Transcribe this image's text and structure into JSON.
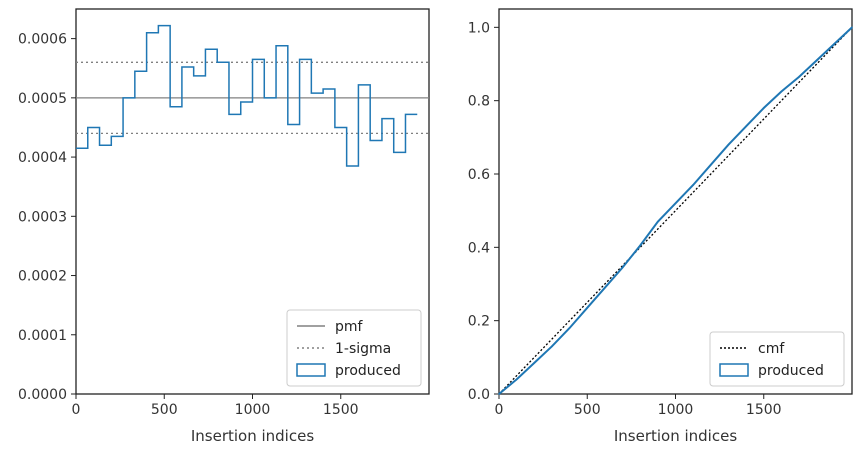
{
  "colors": {
    "produced": "#1f77b4",
    "pmf": "#808080",
    "sigma": "#808080",
    "cmf": "#000000",
    "axes": "#222222"
  },
  "chart_data": [
    {
      "type": "line",
      "xlabel": "Insertion indices",
      "ylabel": "",
      "xlim": [
        0,
        2000
      ],
      "ylim": [
        0,
        0.00065
      ],
      "xticks": [
        0,
        500,
        1000,
        1500
      ],
      "xtick_labels": [
        "0",
        "500",
        "1000",
        "1500"
      ],
      "yticks": [
        0,
        0.0001,
        0.0002,
        0.0003,
        0.0004,
        0.0005,
        0.0006
      ],
      "ytick_labels": [
        "0.0000",
        "0.0001",
        "0.0002",
        "0.0003",
        "0.0004",
        "0.0005",
        "0.0006"
      ],
      "grid": false,
      "legend_position": "lower-right",
      "legend": [
        "pmf",
        "1-sigma",
        "produced"
      ],
      "pmf": 0.0005,
      "sigma_band": [
        0.00044,
        0.00056
      ],
      "bin_width": 66.67,
      "produced": [
        0.000415,
        0.00045,
        0.00042,
        0.000435,
        0.0005,
        0.000545,
        0.00061,
        0.000622,
        0.000485,
        0.000552,
        0.000537,
        0.000582,
        0.00056,
        0.000472,
        0.000493,
        0.000565,
        0.0005,
        0.000588,
        0.000455,
        0.000565,
        0.000508,
        0.000515,
        0.00045,
        0.000385,
        0.000522,
        0.000428,
        0.000465,
        0.000408,
        0.000472
      ]
    },
    {
      "type": "line",
      "xlabel": "Insertion indices",
      "ylabel": "",
      "xlim": [
        0,
        2000
      ],
      "ylim": [
        0,
        1.05
      ],
      "xticks": [
        0,
        500,
        1000,
        1500
      ],
      "xtick_labels": [
        "0",
        "500",
        "1000",
        "1500"
      ],
      "yticks": [
        0,
        0.2,
        0.4,
        0.6,
        0.8,
        1.0
      ],
      "ytick_labels": [
        "0.0",
        "0.2",
        "0.4",
        "0.6",
        "0.8",
        "1.0"
      ],
      "grid": false,
      "legend_position": "lower-right",
      "legend": [
        "cmf",
        "produced"
      ],
      "cmf": {
        "x": [
          0,
          2000
        ],
        "y": [
          0,
          1.0
        ]
      },
      "produced_x": [
        0,
        100,
        200,
        300,
        400,
        500,
        600,
        700,
        800,
        900,
        1000,
        1100,
        1200,
        1300,
        1400,
        1500,
        1600,
        1700,
        1800,
        1900,
        2000
      ],
      "produced_y": [
        0,
        0.04,
        0.085,
        0.13,
        0.18,
        0.235,
        0.29,
        0.345,
        0.405,
        0.47,
        0.52,
        0.57,
        0.625,
        0.68,
        0.73,
        0.78,
        0.825,
        0.865,
        0.91,
        0.955,
        1.0
      ]
    }
  ]
}
